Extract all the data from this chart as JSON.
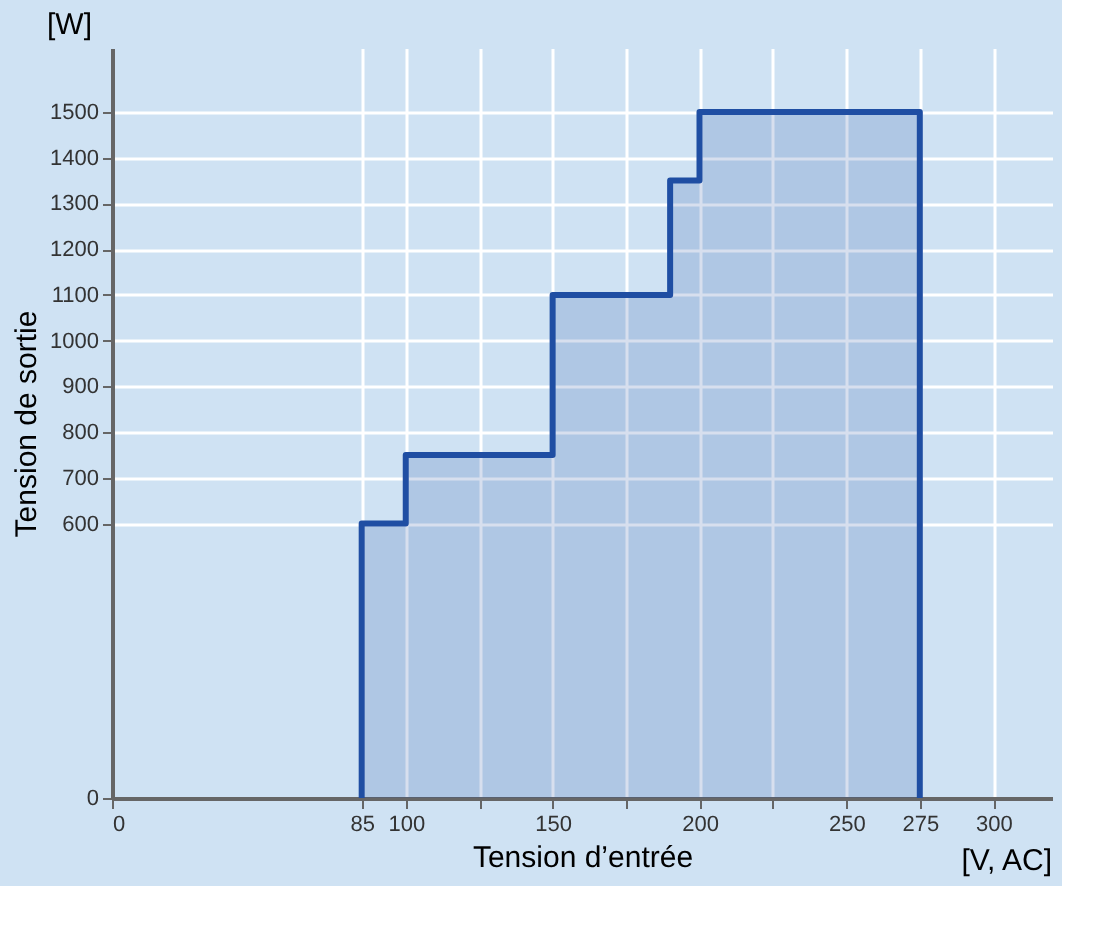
{
  "chart_data": {
    "type": "area",
    "xlabel": "Tension d’entrée",
    "ylabel": "Tension de sortie",
    "annotations": [
      "[W]",
      "[V, AC]"
    ],
    "x": [
      85,
      85,
      100,
      100,
      150,
      150,
      190,
      190,
      200,
      200,
      275,
      275
    ],
    "series": [
      {
        "color": "#1f4ea3",
        "values": [
          0,
          600,
          600,
          750,
          750,
          1100,
          1100,
          1350,
          1350,
          1500,
          1500,
          0
        ]
      }
    ],
    "xlim": [
      0,
      320
    ],
    "ylim": [
      0,
      1640
    ],
    "xticks": [
      0,
      85,
      100,
      {
        "value": 125,
        "label": null
      },
      150,
      {
        "value": 175,
        "label": null
      },
      200,
      {
        "value": 225,
        "label": null
      },
      250,
      275,
      300
    ],
    "yticks": [
      0,
      600,
      700,
      800,
      900,
      1000,
      1100,
      1200,
      1300,
      1400,
      1500
    ],
    "grid": true,
    "legend": false
  }
}
